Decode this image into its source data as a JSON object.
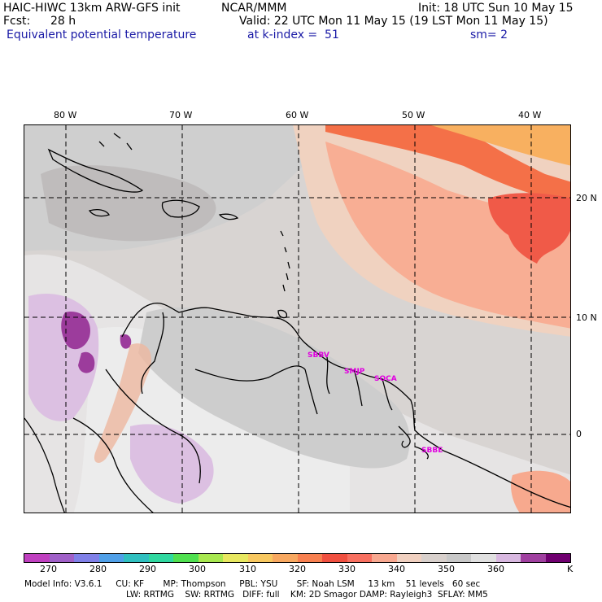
{
  "header": {
    "title_left": "HAIC-HIWC 13km ARW-GFS init",
    "title_center": "NCAR/MMM",
    "init": "Init: 18 UTC Sun 10 May 15",
    "fcst_label": "Fcst:",
    "fcst_value": "28 h",
    "valid": "Valid: 22 UTC Mon 11 May 15 (19 LST Mon 11 May 15)",
    "field": "Equivalent potential temperature",
    "level": "at k-index =  51",
    "smoothing": "sm= 2"
  },
  "map": {
    "lon_labels": [
      "80 W",
      "70 W",
      "60 W",
      "50 W",
      "40 W"
    ],
    "lat_labels": [
      "20 N",
      "10 N",
      "0"
    ],
    "stations": [
      "SBBV",
      "SMJP",
      "SOCA",
      "SBBE"
    ]
  },
  "colorbar": {
    "colors": [
      "#c040c0",
      "#a060c8",
      "#8080e8",
      "#50a0e8",
      "#30c0c0",
      "#30d8a0",
      "#50e050",
      "#a8e850",
      "#e8e860",
      "#f8c860",
      "#f8a860",
      "#f88050",
      "#f05040",
      "#f87060",
      "#f8a890",
      "#f0d0c0",
      "#d8d0cc",
      "#c8c8c8",
      "#e0e0e0",
      "#d8b8e0",
      "#a040a0",
      "#700070"
    ],
    "ticks": [
      "270",
      "280",
      "290",
      "300",
      "310",
      "320",
      "330",
      "340",
      "350",
      "360"
    ],
    "unit": "K"
  },
  "model_info": {
    "line1": "Model Info: V3.6.1     CU: KF       MP: Thompson     PBL: YSU       SF: Noah LSM     13 km    51 levels   60 sec",
    "line2": "LW: RRTMG    SW: RRTMG   DIFF: full    KM: 2D Smagor DAMP: Rayleigh3  SFLAY: MM5"
  }
}
